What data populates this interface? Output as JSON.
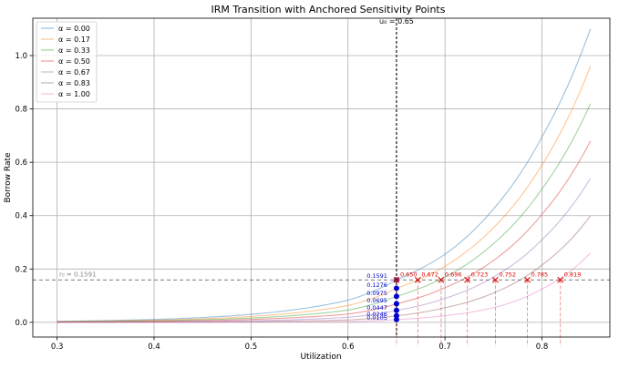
{
  "chart_data": {
    "type": "line",
    "title": "IRM Transition with Anchored Sensitivity Points",
    "xlabel": "Utilization",
    "ylabel": "Borrow Rate",
    "xlim": [
      0.275,
      0.87
    ],
    "ylim": [
      -0.055,
      1.14
    ],
    "x_ticks": [
      0.3,
      0.4,
      0.5,
      0.6,
      0.7,
      0.8
    ],
    "x_tick_labels": [
      "0.3",
      "0.4",
      "0.5",
      "0.6",
      "0.7",
      "0.8"
    ],
    "y_ticks": [
      0.0,
      0.2,
      0.4,
      0.6,
      0.8,
      1.0
    ],
    "y_tick_labels": [
      "0.0",
      "0.2",
      "0.4",
      "0.6",
      "0.8",
      "1.0"
    ],
    "grid": true,
    "legend_position": "top-left",
    "x_range": [
      0.3,
      0.85
    ],
    "series": [
      {
        "name": "α = 0.00",
        "color": "#1f77b4",
        "x": [
          0.3,
          0.4,
          0.5,
          0.6,
          0.65,
          0.7,
          0.75,
          0.8,
          0.85
        ],
        "values": [
          0.004,
          0.011,
          0.03,
          0.083,
          0.1591,
          0.255,
          0.425,
          0.695,
          1.1
        ]
      },
      {
        "name": "α = 0.17",
        "color": "#ff7f0e",
        "x": [
          0.3,
          0.4,
          0.5,
          0.6,
          0.65,
          0.7,
          0.75,
          0.8,
          0.85
        ],
        "values": [
          0.003,
          0.008,
          0.022,
          0.063,
          0.1276,
          0.21,
          0.355,
          0.59,
          0.96
        ]
      },
      {
        "name": "α = 0.33",
        "color": "#2ca02c",
        "x": [
          0.3,
          0.4,
          0.5,
          0.6,
          0.65,
          0.7,
          0.75,
          0.8,
          0.85
        ],
        "values": [
          0.002,
          0.006,
          0.016,
          0.046,
          0.0975,
          0.17,
          0.295,
          0.5,
          0.82
        ]
      },
      {
        "name": "α = 0.50",
        "color": "#d62728",
        "x": [
          0.3,
          0.4,
          0.5,
          0.6,
          0.65,
          0.7,
          0.75,
          0.8,
          0.85
        ],
        "values": [
          0.001,
          0.004,
          0.011,
          0.031,
          0.0695,
          0.13,
          0.232,
          0.405,
          0.68
        ]
      },
      {
        "name": "α = 0.67",
        "color": "#9467bd",
        "x": [
          0.3,
          0.4,
          0.5,
          0.6,
          0.65,
          0.7,
          0.75,
          0.8,
          0.85
        ],
        "values": [
          0.001,
          0.002,
          0.006,
          0.019,
          0.0447,
          0.09,
          0.17,
          0.31,
          0.54
        ]
      },
      {
        "name": "α = 0.83",
        "color": "#8c564b",
        "x": [
          0.3,
          0.4,
          0.5,
          0.6,
          0.65,
          0.7,
          0.75,
          0.8,
          0.85
        ],
        "values": [
          0.0,
          0.001,
          0.003,
          0.009,
          0.0246,
          0.055,
          0.11,
          0.215,
          0.4
        ]
      },
      {
        "name": "α = 1.00",
        "color": "#e377c2",
        "x": [
          0.3,
          0.4,
          0.5,
          0.6,
          0.65,
          0.7,
          0.75,
          0.8,
          0.85
        ],
        "values": [
          0.0,
          0.0,
          0.001,
          0.003,
          0.0105,
          0.025,
          0.055,
          0.125,
          0.26
        ]
      }
    ],
    "anchor": {
      "x": 0.65,
      "label": "u₀ = 0.65",
      "rate_label": "r₀ = 0.1591",
      "rate": 0.1591
    },
    "anchor_points": [
      {
        "value": 0.1591,
        "label": "0.1591"
      },
      {
        "value": 0.1276,
        "label": "0.1276"
      },
      {
        "value": 0.0975,
        "label": "0.0975"
      },
      {
        "value": 0.0695,
        "label": "0.0695"
      },
      {
        "value": 0.0447,
        "label": "0.0447"
      },
      {
        "value": 0.0246,
        "label": "0.0246"
      },
      {
        "value": 0.0105,
        "label": "0.0105"
      }
    ],
    "crossings": [
      {
        "x": 0.65,
        "label": "0.650"
      },
      {
        "x": 0.672,
        "label": "0.672"
      },
      {
        "x": 0.696,
        "label": "0.696"
      },
      {
        "x": 0.723,
        "label": "0.723"
      },
      {
        "x": 0.752,
        "label": "0.752"
      },
      {
        "x": 0.785,
        "label": "0.785"
      },
      {
        "x": 0.819,
        "label": "0.819"
      }
    ],
    "anchor_point_color": "#0000cc",
    "crossing_color": "#dd0000"
  }
}
